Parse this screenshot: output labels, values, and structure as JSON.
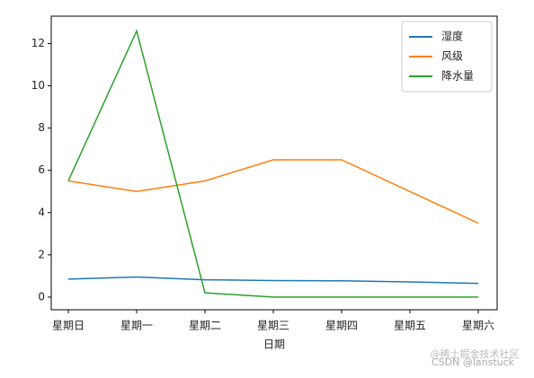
{
  "chart_data": {
    "type": "line",
    "x_label": "日期",
    "categories": [
      "星期日",
      "星期一",
      "星期二",
      "星期三",
      "星期四",
      "星期五",
      "星期六"
    ],
    "series": [
      {
        "name": "湿度",
        "color": "#1f77b4",
        "values": [
          0.85,
          0.95,
          0.82,
          0.78,
          0.77,
          0.72,
          0.65
        ]
      },
      {
        "name": "风级",
        "color": "#ff7f0e",
        "values": [
          5.5,
          5,
          5.5,
          6.5,
          6.5,
          5,
          3.5
        ]
      },
      {
        "name": "降水量",
        "color": "#2ca02c",
        "values": [
          5.5,
          12.6,
          0.2,
          0,
          0,
          0,
          0
        ]
      }
    ],
    "ylim": [
      -0.6,
      13.3
    ],
    "yticks": [
      0,
      2,
      4,
      6,
      8,
      10,
      12
    ],
    "legend": "upper right",
    "watermark": [
      "@稀土掘金技术社区",
      "CSDN @lanstuck"
    ]
  }
}
